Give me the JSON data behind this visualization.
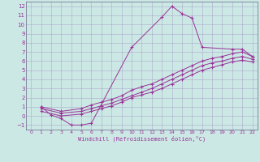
{
  "xlabel": "Windchill (Refroidissement éolien,°C)",
  "bg_color": "#cce8e4",
  "line_color": "#993399",
  "marker": "+",
  "xlim": [
    -0.5,
    22.5
  ],
  "ylim": [
    -1.5,
    12.5
  ],
  "xticks": [
    0,
    1,
    2,
    3,
    4,
    5,
    6,
    7,
    8,
    9,
    10,
    11,
    12,
    13,
    14,
    15,
    16,
    17,
    18,
    19,
    20,
    21,
    22
  ],
  "yticks": [
    -1,
    0,
    1,
    2,
    3,
    4,
    5,
    6,
    7,
    8,
    9,
    10,
    11,
    12
  ],
  "grid_color": "#aaaacc",
  "series1_x": [
    1,
    2,
    3,
    4,
    5,
    6,
    10,
    13,
    14,
    15,
    16,
    17,
    20,
    21,
    22
  ],
  "series1_y": [
    1.0,
    0.1,
    -0.3,
    -1.0,
    -1.0,
    -0.8,
    7.5,
    10.8,
    12.0,
    11.2,
    10.7,
    7.5,
    7.3,
    7.3,
    6.5
  ],
  "series2_x": [
    1,
    3,
    5,
    6,
    7,
    8,
    9,
    10,
    11,
    12,
    13,
    14,
    15,
    16,
    17,
    18,
    19,
    20,
    21,
    22
  ],
  "series2_y": [
    1.0,
    0.5,
    0.8,
    1.2,
    1.5,
    1.8,
    2.2,
    2.8,
    3.2,
    3.5,
    4.0,
    4.5,
    5.0,
    5.5,
    6.0,
    6.3,
    6.5,
    6.8,
    7.0,
    6.5
  ],
  "series3_x": [
    1,
    3,
    5,
    6,
    7,
    8,
    9,
    10,
    11,
    12,
    13,
    14,
    15,
    16,
    17,
    18,
    19,
    20,
    21,
    22
  ],
  "series3_y": [
    0.8,
    0.3,
    0.5,
    0.8,
    1.1,
    1.4,
    1.8,
    2.2,
    2.6,
    3.0,
    3.5,
    4.0,
    4.5,
    5.0,
    5.5,
    5.8,
    6.0,
    6.3,
    6.5,
    6.2
  ],
  "series4_x": [
    1,
    3,
    5,
    6,
    7,
    8,
    9,
    10,
    11,
    12,
    13,
    14,
    15,
    16,
    17,
    18,
    19,
    20,
    21,
    22
  ],
  "series4_y": [
    0.5,
    0.0,
    0.2,
    0.5,
    0.8,
    1.1,
    1.5,
    2.0,
    2.3,
    2.6,
    3.0,
    3.5,
    4.0,
    4.5,
    5.0,
    5.3,
    5.6,
    5.9,
    6.1,
    5.9
  ]
}
